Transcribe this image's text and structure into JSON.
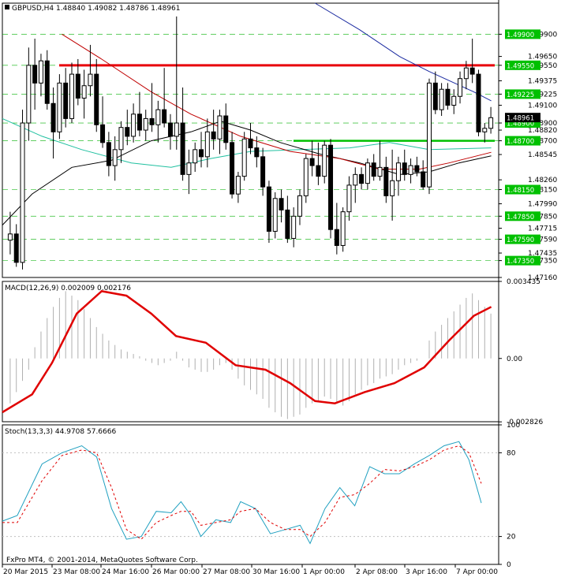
{
  "header": {
    "symbol_line": "GBPUSD,H4  1.48840 1.49082 1.48786 1.48961"
  },
  "colors": {
    "bull": "#ffffff",
    "bear": "#000000",
    "red_line": "#e8000b",
    "green_line": "#00c000",
    "ma_blue": "#1a2aa0",
    "ma_red": "#c00000",
    "ma_teal": "#20c0a0",
    "ma_black": "#000000",
    "macd_signal": "#e00000",
    "stoch_main": "#20a0c0",
    "stoch_signal": "#e00000",
    "grid": "#00b000",
    "label_green": "#00c000"
  },
  "watermark": "FxPro MT4, © 2001-2014, MetaQuotes Software Corp.",
  "x_labels": [
    "20 Mar 2015",
    "23 Mar 08:00",
    "24 Mar 16:00",
    "26 Mar 00:00",
    "27 Mar 08:00",
    "30 Mar 16:00",
    "1 Apr 00:00",
    "2 Apr 08:00",
    "3 Apr 16:00",
    "7 Apr 00:00"
  ],
  "chart_data": [
    {
      "type": "candlestick",
      "title": "GBPUSD,H4  1.48840 1.49082 1.48786 1.48961",
      "ylim": [
        1.4716,
        1.5025
      ],
      "yticks": [
        "1.49900",
        "1.49650",
        "1.49550",
        "1.49375",
        "1.49225",
        "1.49100",
        "1.48900",
        "1.48820",
        "1.48700",
        "1.48545",
        "1.48260",
        "1.48150",
        "1.47990",
        "1.47850",
        "1.47715",
        "1.47590",
        "1.47435",
        "1.47350",
        "1.47160"
      ],
      "horizontal_lines": [
        {
          "name": "resistance",
          "value": 1.4955,
          "label": "1.49550"
        },
        {
          "name": "support",
          "value": 1.487,
          "label": "1.48700"
        }
      ],
      "green_labels": [
        "1.49900",
        "1.49550",
        "1.49225",
        "1.48900",
        "1.48700",
        "1.48150",
        "1.47850",
        "1.47590",
        "1.47350"
      ],
      "last_price_label": "1.48961",
      "candles": [
        [
          1.4758,
          1.479,
          1.4742,
          1.4765
        ],
        [
          1.4765,
          1.4776,
          1.4728,
          1.4733
        ],
        [
          1.4733,
          1.4905,
          1.4725,
          1.489
        ],
        [
          1.489,
          1.4975,
          1.487,
          1.4955
        ],
        [
          1.4955,
          1.4985,
          1.4905,
          1.4935
        ],
        [
          1.4935,
          1.4968,
          1.492,
          1.496
        ],
        [
          1.496,
          1.4972,
          1.4905,
          1.4912
        ],
        [
          1.4912,
          1.493,
          1.485,
          1.488
        ],
        [
          1.488,
          1.4945,
          1.4872,
          1.4935
        ],
        [
          1.4935,
          1.4952,
          1.4885,
          1.4895
        ],
        [
          1.4895,
          1.4958,
          1.489,
          1.4945
        ],
        [
          1.4945,
          1.4962,
          1.491,
          1.4918
        ],
        [
          1.4918,
          1.495,
          1.4895,
          1.4932
        ],
        [
          1.4932,
          1.4978,
          1.492,
          1.4945
        ],
        [
          1.4945,
          1.4962,
          1.488,
          1.4888
        ],
        [
          1.4888,
          1.492,
          1.4862,
          1.4868
        ],
        [
          1.4868,
          1.488,
          1.483,
          1.4842
        ],
        [
          1.4842,
          1.4875,
          1.4825,
          1.486
        ],
        [
          1.486,
          1.4892,
          1.4845,
          1.4885
        ],
        [
          1.4885,
          1.4905,
          1.4865,
          1.4875
        ],
        [
          1.4875,
          1.4912,
          1.4868,
          1.49
        ],
        [
          1.49,
          1.4925,
          1.4875,
          1.4882
        ],
        [
          1.4882,
          1.4905,
          1.487,
          1.4895
        ],
        [
          1.4895,
          1.4935,
          1.488,
          1.4888
        ],
        [
          1.4888,
          1.4915,
          1.4868,
          1.4905
        ],
        [
          1.4905,
          1.4952,
          1.4885,
          1.489
        ],
        [
          1.489,
          1.49,
          1.486,
          1.4875
        ],
        [
          1.4875,
          1.501,
          1.486,
          1.489
        ],
        [
          1.489,
          1.493,
          1.4825,
          1.4832
        ],
        [
          1.4832,
          1.486,
          1.481,
          1.4845
        ],
        [
          1.4845,
          1.4868,
          1.4835,
          1.486
        ],
        [
          1.486,
          1.488,
          1.484,
          1.4852
        ],
        [
          1.4852,
          1.4895,
          1.484,
          1.488
        ],
        [
          1.488,
          1.4905,
          1.486,
          1.4872
        ],
        [
          1.4872,
          1.4905,
          1.4855,
          1.4898
        ],
        [
          1.4898,
          1.4912,
          1.486,
          1.4868
        ],
        [
          1.4868,
          1.488,
          1.4805,
          1.481
        ],
        [
          1.481,
          1.4835,
          1.48,
          1.483
        ],
        [
          1.483,
          1.488,
          1.4825,
          1.4872
        ],
        [
          1.4872,
          1.489,
          1.4855,
          1.4862
        ],
        [
          1.4862,
          1.4875,
          1.484,
          1.4852
        ],
        [
          1.4852,
          1.4862,
          1.4808,
          1.4818
        ],
        [
          1.4818,
          1.4825,
          1.4755,
          1.4768
        ],
        [
          1.4768,
          1.4812,
          1.476,
          1.4805
        ],
        [
          1.4805,
          1.4815,
          1.4778,
          1.4792
        ],
        [
          1.4792,
          1.4808,
          1.4755,
          1.476
        ],
        [
          1.476,
          1.4795,
          1.475,
          1.4785
        ],
        [
          1.4785,
          1.4815,
          1.4775,
          1.4808
        ],
        [
          1.4808,
          1.4855,
          1.48,
          1.485
        ],
        [
          1.485,
          1.487,
          1.483,
          1.4842
        ],
        [
          1.4842,
          1.4868,
          1.482,
          1.483
        ],
        [
          1.483,
          1.487,
          1.4822,
          1.4865
        ],
        [
          1.4865,
          1.4872,
          1.476,
          1.477
        ],
        [
          1.477,
          1.48,
          1.4742,
          1.4752
        ],
        [
          1.4752,
          1.4795,
          1.4745,
          1.479
        ],
        [
          1.479,
          1.483,
          1.478,
          1.482
        ],
        [
          1.482,
          1.484,
          1.48,
          1.4832
        ],
        [
          1.4832,
          1.484,
          1.4815,
          1.4822
        ],
        [
          1.4822,
          1.485,
          1.4815,
          1.4845
        ],
        [
          1.4845,
          1.4855,
          1.4825,
          1.483
        ],
        [
          1.483,
          1.487,
          1.4825,
          1.484
        ],
        [
          1.484,
          1.4852,
          1.48,
          1.4808
        ],
        [
          1.4808,
          1.486,
          1.478,
          1.4825
        ],
        [
          1.4825,
          1.4852,
          1.4808,
          1.4845
        ],
        [
          1.4845,
          1.486,
          1.4825,
          1.4832
        ],
        [
          1.4832,
          1.485,
          1.4822,
          1.4842
        ],
        [
          1.4842,
          1.4852,
          1.483,
          1.4835
        ],
        [
          1.4835,
          1.4848,
          1.4815,
          1.4818
        ],
        [
          1.4818,
          1.494,
          1.481,
          1.4935
        ],
        [
          1.4935,
          1.4948,
          1.49,
          1.4905
        ],
        [
          1.4905,
          1.4935,
          1.4898,
          1.4928
        ],
        [
          1.4928,
          1.4935,
          1.4905,
          1.491
        ],
        [
          1.491,
          1.4928,
          1.49,
          1.492
        ],
        [
          1.492,
          1.4948,
          1.4912,
          1.494
        ],
        [
          1.494,
          1.496,
          1.4928,
          1.4952
        ],
        [
          1.4952,
          1.4985,
          1.4935,
          1.4945
        ],
        [
          1.4945,
          1.495,
          1.4875,
          1.488
        ],
        [
          1.488,
          1.489,
          1.4868,
          1.4884
        ],
        [
          1.4884,
          1.4908,
          1.4878,
          1.4896
        ]
      ],
      "ma_blue": [
        [
          0.63,
          1.5025
        ],
        [
          0.72,
          1.4995
        ],
        [
          0.8,
          1.4965
        ],
        [
          0.86,
          1.4948
        ],
        [
          0.95,
          1.4925
        ],
        [
          0.985,
          1.4915
        ]
      ],
      "ma_red": [
        [
          0.12,
          1.499
        ],
        [
          0.2,
          1.4962
        ],
        [
          0.3,
          1.4925
        ],
        [
          0.38,
          1.49
        ],
        [
          0.48,
          1.4875
        ],
        [
          0.58,
          1.4858
        ],
        [
          0.68,
          1.485
        ],
        [
          0.76,
          1.4838
        ],
        [
          0.84,
          1.4838
        ],
        [
          0.9,
          1.4845
        ],
        [
          0.985,
          1.4857
        ]
      ],
      "ma_teal": [
        [
          0.0,
          1.4895
        ],
        [
          0.08,
          1.4875
        ],
        [
          0.16,
          1.486
        ],
        [
          0.26,
          1.4845
        ],
        [
          0.34,
          1.484
        ],
        [
          0.42,
          1.485
        ],
        [
          0.5,
          1.4858
        ],
        [
          0.6,
          1.486
        ],
        [
          0.7,
          1.4862
        ],
        [
          0.78,
          1.4868
        ],
        [
          0.86,
          1.486
        ],
        [
          0.985,
          1.4862
        ]
      ],
      "ma_black": [
        [
          0.0,
          1.4775
        ],
        [
          0.06,
          1.481
        ],
        [
          0.14,
          1.484
        ],
        [
          0.22,
          1.4848
        ],
        [
          0.3,
          1.487
        ],
        [
          0.38,
          1.488
        ],
        [
          0.44,
          1.4892
        ],
        [
          0.5,
          1.4882
        ],
        [
          0.56,
          1.4868
        ],
        [
          0.64,
          1.4855
        ],
        [
          0.72,
          1.4845
        ],
        [
          0.8,
          1.4832
        ],
        [
          0.86,
          1.4835
        ],
        [
          0.92,
          1.4845
        ],
        [
          0.985,
          1.4853
        ]
      ]
    },
    {
      "type": "bar",
      "title": "MACD(12,26,9) 0.002009 0.002176",
      "ylim": [
        -0.00282,
        0.003435
      ],
      "yticks": [
        "0.003435",
        "0.00",
        "-0.002826"
      ],
      "histogram": [
        -0.002,
        -0.0015,
        -0.001,
        -0.0005,
        0.0005,
        0.0012,
        0.0018,
        0.0023,
        0.0027,
        0.003,
        0.0028,
        0.0026,
        0.0022,
        0.0018,
        0.0014,
        0.0011,
        0.0008,
        0.0006,
        0.0004,
        0.0003,
        0.0002,
        0.0001,
        -0.0001,
        -0.0002,
        -0.0003,
        -0.0002,
        -0.0001,
        0.0003,
        -0.0001,
        -0.0004,
        -0.0005,
        -0.0006,
        -0.0006,
        -0.0005,
        -0.0003,
        -0.0002,
        -0.0005,
        -0.0009,
        -0.0012,
        -0.0014,
        -0.0016,
        -0.0018,
        -0.0022,
        -0.0024,
        -0.0026,
        -0.0027,
        -0.0026,
        -0.0025,
        -0.0022,
        -0.002,
        -0.0019,
        -0.0017,
        -0.0018,
        -0.002,
        -0.0021,
        -0.0019,
        -0.0016,
        -0.0014,
        -0.0012,
        -0.0011,
        -0.0009,
        -0.0008,
        -0.0007,
        -0.0005,
        -0.0003,
        -0.0002,
        -0.0001,
        0.0,
        0.0008,
        0.0012,
        0.0015,
        0.0018,
        0.0021,
        0.0024,
        0.0027,
        0.0029,
        0.0026,
        0.0023,
        0.002
      ],
      "signal": [
        [
          0.0,
          -0.0024
        ],
        [
          0.06,
          -0.0016
        ],
        [
          0.1,
          -0.0002
        ],
        [
          0.15,
          0.002
        ],
        [
          0.2,
          0.003
        ],
        [
          0.25,
          0.0028
        ],
        [
          0.3,
          0.002
        ],
        [
          0.35,
          0.001
        ],
        [
          0.41,
          0.0007
        ],
        [
          0.47,
          -0.0003
        ],
        [
          0.53,
          -0.0005
        ],
        [
          0.58,
          -0.0011
        ],
        [
          0.63,
          -0.0019
        ],
        [
          0.67,
          -0.002
        ],
        [
          0.73,
          -0.0015
        ],
        [
          0.79,
          -0.0011
        ],
        [
          0.85,
          -0.0004
        ],
        [
          0.9,
          0.0008
        ],
        [
          0.95,
          0.0019
        ],
        [
          0.985,
          0.0023
        ]
      ]
    },
    {
      "type": "line",
      "title": "Stoch(13,3,3) 44.9708 57.6666",
      "ylim": [
        0,
        100
      ],
      "yticks": [
        "100",
        "80",
        "20",
        "0"
      ],
      "series": [
        {
          "name": "main",
          "values": [
            [
              0.0,
              31
            ],
            [
              0.03,
              35
            ],
            [
              0.08,
              72
            ],
            [
              0.12,
              80
            ],
            [
              0.16,
              85
            ],
            [
              0.19,
              77
            ],
            [
              0.22,
              40
            ],
            [
              0.25,
              18
            ],
            [
              0.28,
              20
            ],
            [
              0.31,
              38
            ],
            [
              0.34,
              37
            ],
            [
              0.36,
              45
            ],
            [
              0.38,
              35
            ],
            [
              0.4,
              20
            ],
            [
              0.43,
              32
            ],
            [
              0.46,
              30
            ],
            [
              0.48,
              45
            ],
            [
              0.51,
              40
            ],
            [
              0.54,
              22
            ],
            [
              0.57,
              25
            ],
            [
              0.6,
              28
            ],
            [
              0.62,
              15
            ],
            [
              0.65,
              40
            ],
            [
              0.68,
              55
            ],
            [
              0.71,
              42
            ],
            [
              0.74,
              70
            ],
            [
              0.77,
              65
            ],
            [
              0.8,
              65
            ],
            [
              0.83,
              72
            ],
            [
              0.86,
              78
            ],
            [
              0.89,
              85
            ],
            [
              0.92,
              88
            ],
            [
              0.94,
              75
            ],
            [
              0.965,
              44
            ]
          ]
        },
        {
          "name": "signal",
          "values": [
            [
              0.0,
              30
            ],
            [
              0.03,
              30
            ],
            [
              0.08,
              60
            ],
            [
              0.12,
              78
            ],
            [
              0.16,
              82
            ],
            [
              0.19,
              80
            ],
            [
              0.22,
              55
            ],
            [
              0.25,
              25
            ],
            [
              0.28,
              18
            ],
            [
              0.31,
              30
            ],
            [
              0.34,
              35
            ],
            [
              0.36,
              38
            ],
            [
              0.38,
              38
            ],
            [
              0.4,
              28
            ],
            [
              0.43,
              30
            ],
            [
              0.46,
              32
            ],
            [
              0.48,
              38
            ],
            [
              0.51,
              40
            ],
            [
              0.54,
              30
            ],
            [
              0.57,
              25
            ],
            [
              0.6,
              25
            ],
            [
              0.62,
              20
            ],
            [
              0.65,
              30
            ],
            [
              0.68,
              48
            ],
            [
              0.71,
              50
            ],
            [
              0.74,
              58
            ],
            [
              0.77,
              68
            ],
            [
              0.8,
              67
            ],
            [
              0.83,
              70
            ],
            [
              0.86,
              75
            ],
            [
              0.89,
              82
            ],
            [
              0.92,
              85
            ],
            [
              0.94,
              80
            ],
            [
              0.965,
              58
            ]
          ]
        }
      ]
    }
  ]
}
